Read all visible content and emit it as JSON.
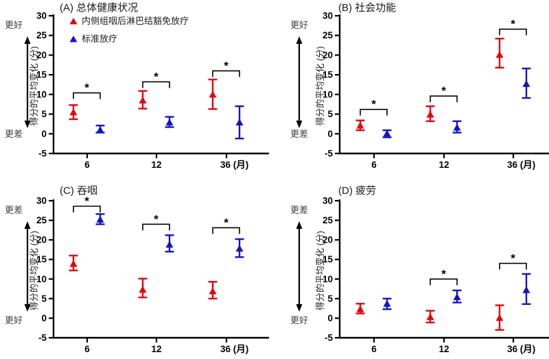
{
  "figure": {
    "background": "#ffffff",
    "axis_color": "#000000",
    "title_color": "#1a1a1a",
    "muted_text_color": "#3f3f3f",
    "accent_red": "#e8000b",
    "accent_blue": "#1313c4"
  },
  "legend": {
    "items": [
      {
        "label": "内侧组咽后淋巴结豁免放疗",
        "color": "#e8000b",
        "marker": "triangle-up-icon"
      },
      {
        "label": "标准放疗",
        "color": "#1313c4",
        "marker": "triangle-up-icon"
      }
    ],
    "position": "top-left-inside-panel-A"
  },
  "chart_data": [
    {
      "type": "scatter",
      "panel_id": "A",
      "title": "(A) 总体健康状况",
      "ylabel": "得分的平均变化 (分)",
      "top_direction_label": "更好",
      "bottom_direction_label": "更差",
      "ylim": [
        -5,
        30
      ],
      "yticks": [
        30,
        25,
        20,
        15,
        10,
        5,
        0,
        -5
      ],
      "x_categories": [
        "6",
        "12",
        "36"
      ],
      "x_unit": "(月)",
      "x_tick_labels": [
        "6",
        "12",
        "36 (月)"
      ],
      "grid": false,
      "show_legend": true,
      "series": [
        {
          "name": "内侧组咽后淋巴结豁免放疗",
          "color": "#e8000b",
          "means": [
            5.5,
            8.5,
            10.0
          ],
          "ci_low": [
            3.7,
            6.4,
            6.3
          ],
          "ci_high": [
            7.3,
            10.9,
            13.8
          ]
        },
        {
          "name": "标准放疗",
          "color": "#1313c4",
          "means": [
            1.0,
            2.9,
            2.9
          ],
          "ci_low": [
            0.3,
            1.7,
            -1.2
          ],
          "ci_high": [
            2.1,
            4.3,
            7.0
          ]
        }
      ],
      "significance_markers": [
        {
          "x_index": 0,
          "label": "*",
          "y": 10.4
        },
        {
          "x_index": 1,
          "label": "*",
          "y": 13.2
        },
        {
          "x_index": 2,
          "label": "*",
          "y": 16.0
        }
      ]
    },
    {
      "type": "scatter",
      "panel_id": "B",
      "title": "(B) 社会功能",
      "ylabel": "得分的平均变化 (分)",
      "top_direction_label": "更好",
      "bottom_direction_label": "更差",
      "ylim": [
        -5,
        30
      ],
      "yticks": [
        30,
        25,
        20,
        15,
        10,
        5,
        0,
        -5
      ],
      "x_categories": [
        "6",
        "12",
        "36"
      ],
      "x_unit": "(月)",
      "x_tick_labels": [
        "6",
        "12",
        "36 (月)"
      ],
      "grid": false,
      "show_legend": false,
      "series": [
        {
          "name": "内侧组咽后淋巴结豁免放疗",
          "color": "#e8000b",
          "means": [
            2.1,
            4.9,
            20.1
          ],
          "ci_low": [
            0.9,
            3.2,
            16.8
          ],
          "ci_high": [
            3.4,
            7.0,
            24.2
          ]
        },
        {
          "name": "标准放疗",
          "color": "#1313c4",
          "means": [
            0.1,
            1.6,
            12.7
          ],
          "ci_low": [
            -0.9,
            0.3,
            9.1
          ],
          "ci_high": [
            0.9,
            3.2,
            16.6
          ]
        }
      ],
      "significance_markers": [
        {
          "x_index": 0,
          "label": "*",
          "y": 6.2
        },
        {
          "x_index": 1,
          "label": "*",
          "y": 9.6
        },
        {
          "x_index": 2,
          "label": "*",
          "y": 26.6
        }
      ]
    },
    {
      "type": "scatter",
      "panel_id": "C",
      "title": "(C) 吞咽",
      "ylabel": "得分的平均变化 (分)",
      "top_direction_label": "更差",
      "bottom_direction_label": "更好",
      "ylim": [
        -5,
        30
      ],
      "yticks": [
        30,
        25,
        20,
        15,
        10,
        5,
        0,
        -5
      ],
      "x_categories": [
        "6",
        "12",
        "36"
      ],
      "x_unit": "(月)",
      "x_tick_labels": [
        "6",
        "12",
        "36 (月)"
      ],
      "grid": false,
      "show_legend": false,
      "series": [
        {
          "name": "内侧组咽后淋巴结豁免放疗",
          "color": "#e8000b",
          "means": [
            13.9,
            7.3,
            6.9
          ],
          "ci_low": [
            12.2,
            5.3,
            5.0
          ],
          "ci_high": [
            16.0,
            10.1,
            9.3
          ]
        },
        {
          "name": "标准放疗",
          "color": "#1313c4",
          "means": [
            25.2,
            18.8,
            17.8
          ],
          "ci_low": [
            24.0,
            17.0,
            15.6
          ],
          "ci_high": [
            26.6,
            21.2,
            20.2
          ]
        }
      ],
      "significance_markers": [
        {
          "x_index": 0,
          "label": "*",
          "y": 28.6
        },
        {
          "x_index": 1,
          "label": "*",
          "y": 24.0
        },
        {
          "x_index": 2,
          "label": "*",
          "y": 23.1
        }
      ]
    },
    {
      "type": "scatter",
      "panel_id": "D",
      "title": "(D) 疲劳",
      "ylabel": "得分的平均变化 (分)",
      "top_direction_label": "更差",
      "bottom_direction_label": "更好",
      "ylim": [
        -5,
        30
      ],
      "yticks": [
        30,
        25,
        20,
        15,
        10,
        5,
        0,
        -5
      ],
      "x_categories": [
        "6",
        "12",
        "36"
      ],
      "x_unit": "(月)",
      "x_tick_labels": [
        "6",
        "12",
        "36 (月)"
      ],
      "grid": false,
      "show_legend": false,
      "series": [
        {
          "name": "内侧组咽后淋巴结豁免放疗",
          "color": "#e8000b",
          "means": [
            2.3,
            0.3,
            0.1
          ],
          "ci_low": [
            1.2,
            -1.1,
            -3.0
          ],
          "ci_high": [
            3.7,
            1.9,
            3.3
          ]
        },
        {
          "name": "标准放疗",
          "color": "#1313c4",
          "means": [
            3.7,
            5.4,
            7.2
          ],
          "ci_low": [
            2.3,
            4.0,
            3.6
          ],
          "ci_high": [
            5.0,
            7.1,
            11.3
          ]
        }
      ],
      "significance_markers": [
        {
          "x_index": 1,
          "label": "*",
          "y": 10.0
        },
        {
          "x_index": 2,
          "label": "*",
          "y": 14.0
        }
      ]
    }
  ]
}
